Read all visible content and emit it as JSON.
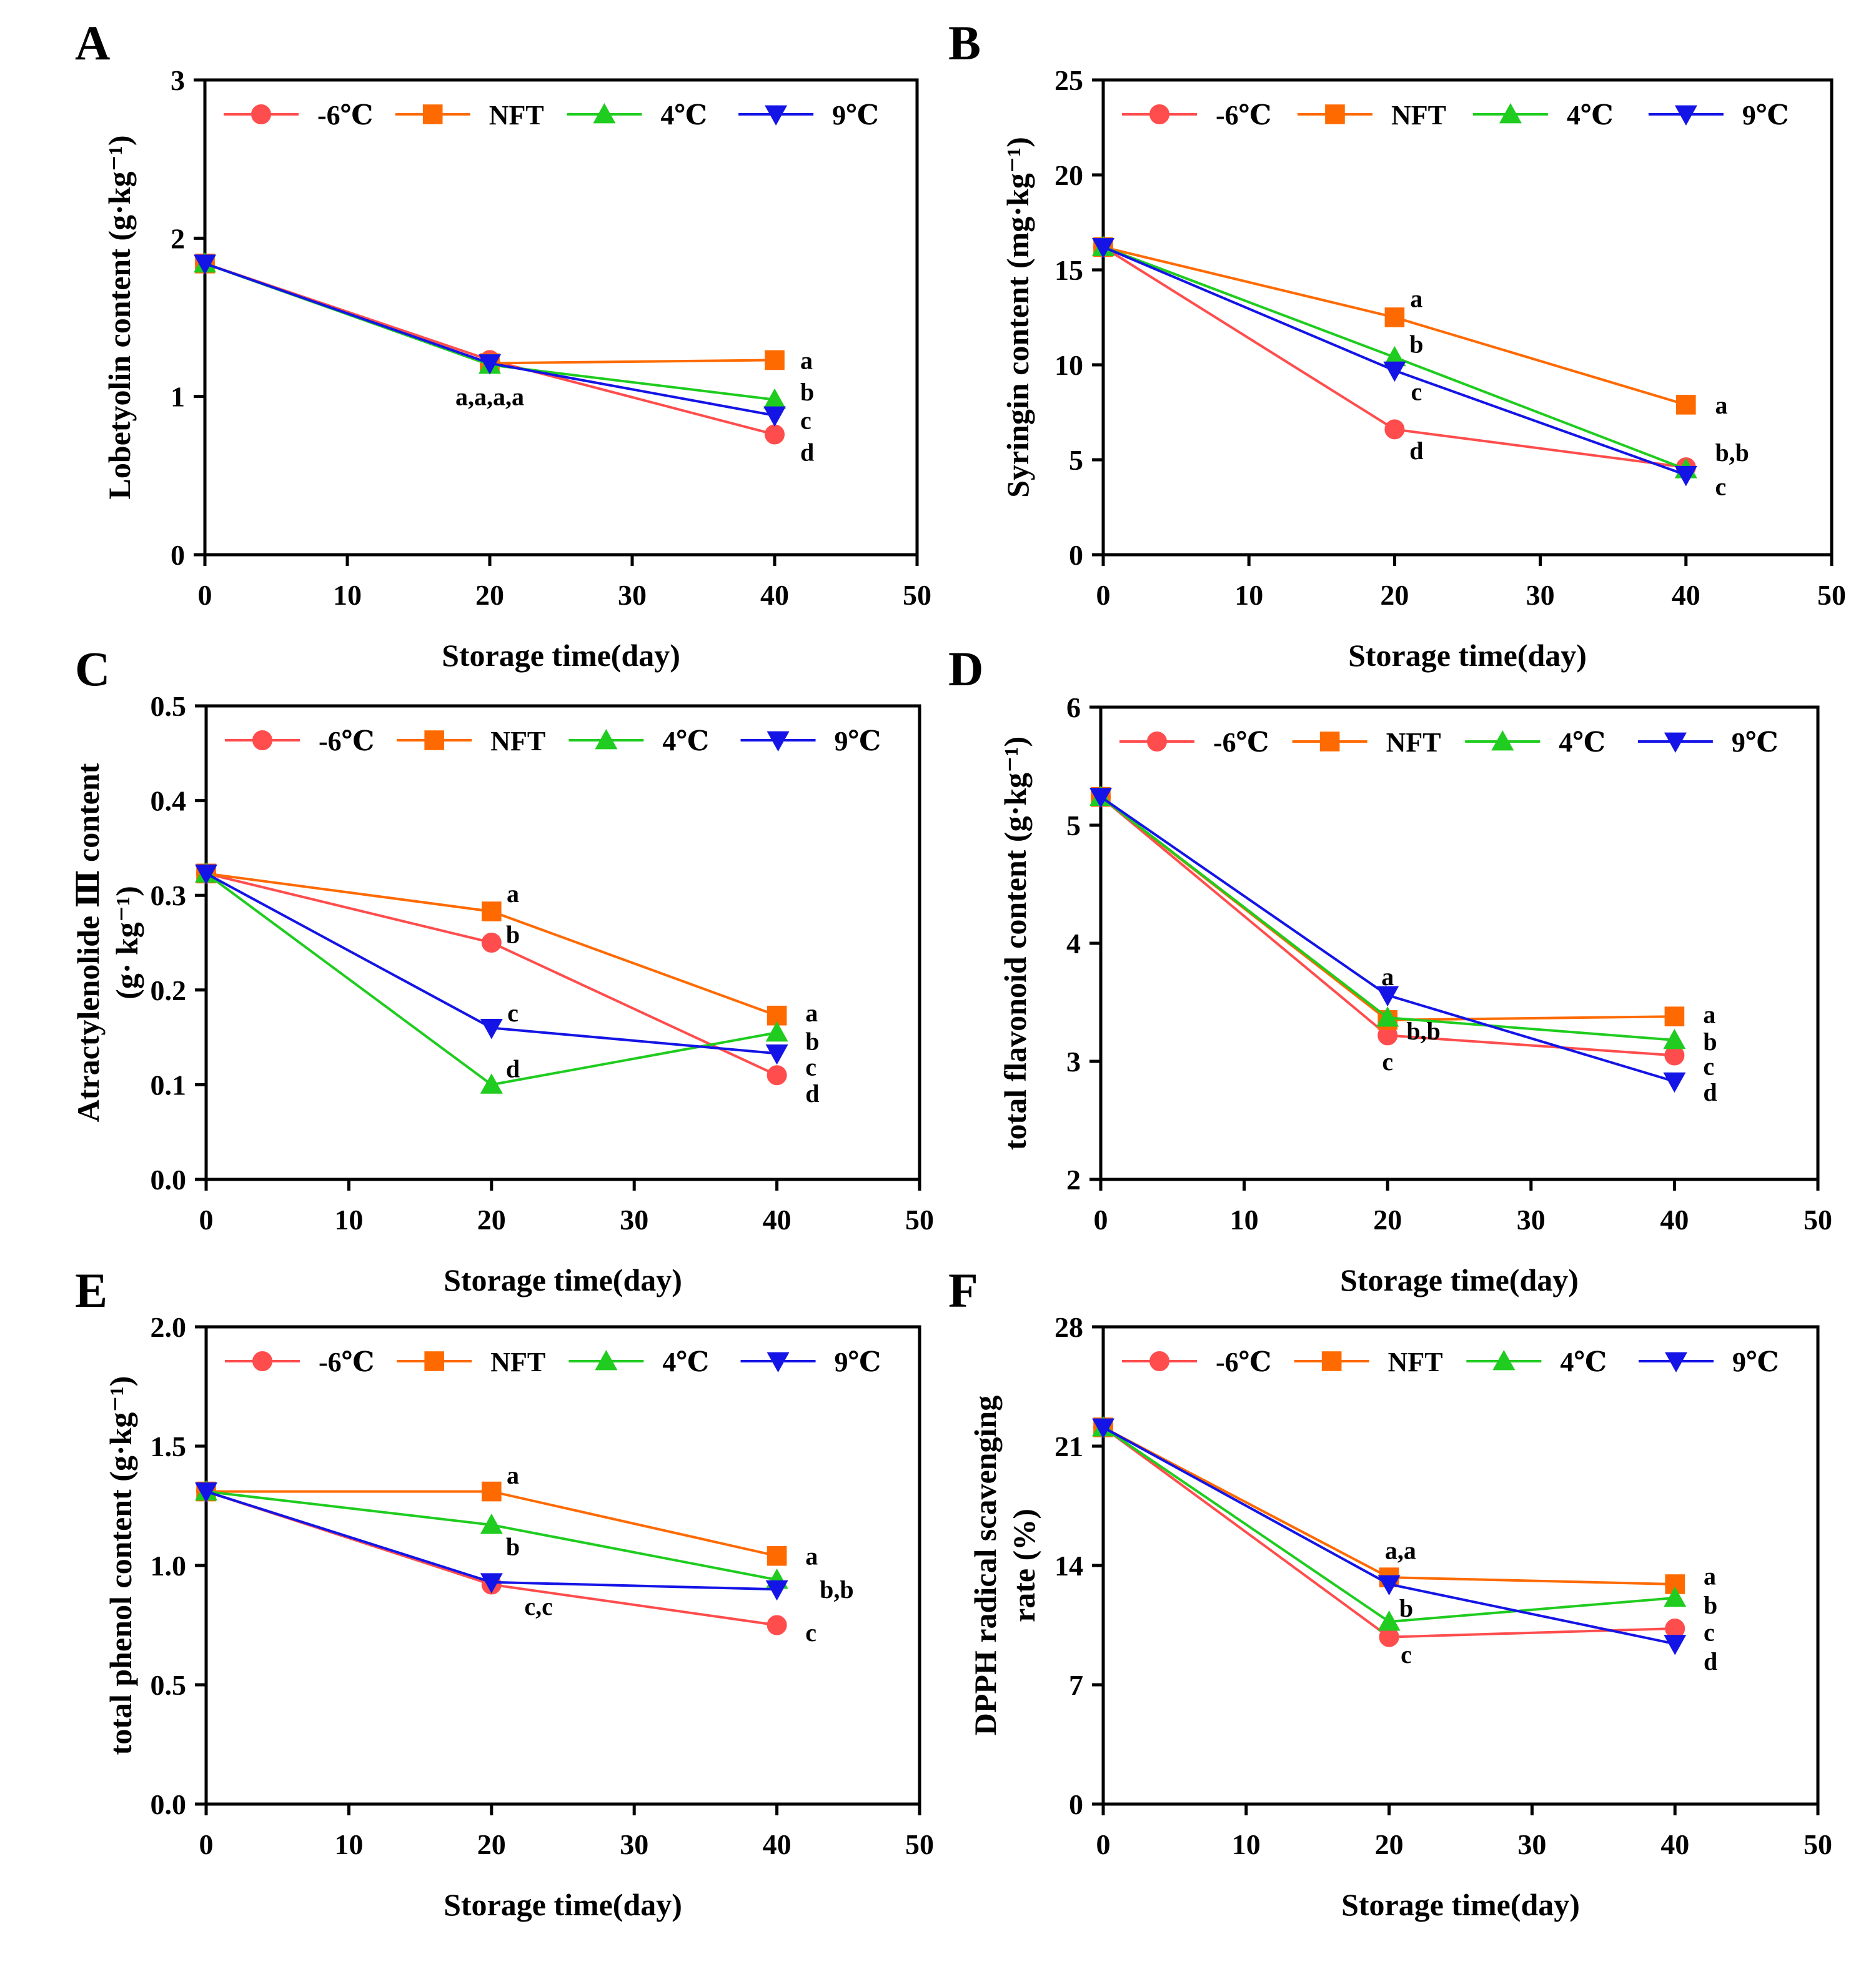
{
  "colors": {
    "neg6": "#ff4d4d",
    "nft": "#ff6a00",
    "c4": "#1fcc1f",
    "c9": "#1414e6"
  },
  "legend": [
    {
      "key": "neg6",
      "label": "-6℃",
      "marker": "circle"
    },
    {
      "key": "nft",
      "label": "NFT",
      "marker": "square"
    },
    {
      "key": "c4",
      "label": "4℃",
      "marker": "triangle-up"
    },
    {
      "key": "c9",
      "label": "9℃",
      "marker": "triangle-down"
    }
  ],
  "chart_data": [
    {
      "type": "line",
      "panel": "A",
      "xlabel": "Storage time(day)",
      "ylabel": "Lobetyolin content (g·kg⁻¹)",
      "ylabel_lines": [
        "Lobetyolin content (g·kg⁻¹)"
      ],
      "xlim": [
        0,
        50
      ],
      "xticks": [
        0,
        10,
        20,
        30,
        40,
        50
      ],
      "ylim": [
        0,
        3
      ],
      "yticks": [
        0,
        1,
        2,
        3
      ],
      "x": [
        0,
        20,
        40
      ],
      "series": [
        {
          "name": "-6℃",
          "key": "neg6",
          "values": [
            1.84,
            1.23,
            0.76
          ]
        },
        {
          "name": "NFT",
          "key": "nft",
          "values": [
            1.84,
            1.21,
            1.23
          ]
        },
        {
          "name": "4℃",
          "key": "c4",
          "values": [
            1.84,
            1.2,
            0.98
          ]
        },
        {
          "name": "9℃",
          "key": "c9",
          "values": [
            1.84,
            1.21,
            0.88
          ]
        }
      ],
      "annotations": [
        {
          "text": "a,a,a,a",
          "x": 20,
          "y": 1.0
        },
        {
          "text": "a",
          "x": 41.8,
          "y": 1.23
        },
        {
          "text": "b",
          "x": 41.8,
          "y": 1.03
        },
        {
          "text": "c",
          "x": 41.8,
          "y": 0.85
        },
        {
          "text": "d",
          "x": 41.8,
          "y": 0.65
        }
      ]
    },
    {
      "type": "line",
      "panel": "B",
      "xlabel": "Storage time(day)",
      "ylabel": "Syringin content (mg·kg⁻¹)",
      "ylabel_lines": [
        "Syringin content (mg·kg⁻¹)"
      ],
      "xlim": [
        0,
        50
      ],
      "xticks": [
        0,
        10,
        20,
        30,
        40,
        50
      ],
      "ylim": [
        0,
        25
      ],
      "yticks": [
        0,
        5,
        10,
        15,
        20,
        25
      ],
      "x": [
        0,
        20,
        40
      ],
      "series": [
        {
          "name": "-6℃",
          "key": "neg6",
          "values": [
            16.2,
            6.6,
            4.6
          ]
        },
        {
          "name": "NFT",
          "key": "nft",
          "values": [
            16.2,
            12.5,
            7.9
          ]
        },
        {
          "name": "4℃",
          "key": "c4",
          "values": [
            16.2,
            10.4,
            4.5
          ]
        },
        {
          "name": "9℃",
          "key": "c9",
          "values": [
            16.2,
            9.7,
            4.2
          ]
        }
      ],
      "annotations": [
        {
          "text": "a",
          "x": 21.5,
          "y": 13.5
        },
        {
          "text": "b",
          "x": 21.5,
          "y": 11.1
        },
        {
          "text": "c",
          "x": 21.5,
          "y": 8.6
        },
        {
          "text": "d",
          "x": 21.5,
          "y": 5.5
        },
        {
          "text": "a",
          "x": 42.0,
          "y": 7.9
        },
        {
          "text": "b,b",
          "x": 42.0,
          "y": 5.4
        },
        {
          "text": "c",
          "x": 42.0,
          "y": 3.6
        }
      ]
    },
    {
      "type": "line",
      "panel": "C",
      "xlabel": "Storage time(day)",
      "ylabel": "Atractylenolide Ⅲ content (g· kg⁻¹)",
      "ylabel_lines": [
        "Atractylenolide Ⅲ content",
        "(g· kg⁻¹)"
      ],
      "xlim": [
        0,
        50
      ],
      "xticks": [
        0,
        10,
        20,
        30,
        40,
        50
      ],
      "ylim": [
        0,
        0.5
      ],
      "yticks": [
        0.0,
        0.1,
        0.2,
        0.3,
        0.4,
        0.5
      ],
      "ytick_decimals": 1,
      "x": [
        0,
        20,
        40
      ],
      "series": [
        {
          "name": "-6℃",
          "key": "neg6",
          "values": [
            0.323,
            0.25,
            0.11
          ]
        },
        {
          "name": "NFT",
          "key": "nft",
          "values": [
            0.323,
            0.283,
            0.173
          ]
        },
        {
          "name": "4℃",
          "key": "c4",
          "values": [
            0.323,
            0.1,
            0.155
          ]
        },
        {
          "name": "9℃",
          "key": "c9",
          "values": [
            0.323,
            0.16,
            0.133
          ]
        }
      ],
      "annotations": [
        {
          "text": "a",
          "x": 21.5,
          "y": 0.302
        },
        {
          "text": "b",
          "x": 21.5,
          "y": 0.259
        },
        {
          "text": "c",
          "x": 21.5,
          "y": 0.176
        },
        {
          "text": "d",
          "x": 21.5,
          "y": 0.117
        },
        {
          "text": "a",
          "x": 42.0,
          "y": 0.176
        },
        {
          "text": "b",
          "x": 42.0,
          "y": 0.146
        },
        {
          "text": "c",
          "x": 42.0,
          "y": 0.119
        },
        {
          "text": "d",
          "x": 42.0,
          "y": 0.091
        }
      ]
    },
    {
      "type": "line",
      "panel": "D",
      "xlabel": "Storage time(day)",
      "ylabel": "total flavonoid content (g·kg⁻¹)",
      "ylabel_lines": [
        "total flavonoid content (g·kg⁻¹)"
      ],
      "xlim": [
        0,
        50
      ],
      "xticks": [
        0,
        10,
        20,
        30,
        40,
        50
      ],
      "ylim": [
        2,
        6
      ],
      "yticks": [
        2,
        3,
        4,
        5,
        6
      ],
      "x": [
        0,
        20,
        40
      ],
      "series": [
        {
          "name": "-6℃",
          "key": "neg6",
          "values": [
            5.24,
            3.22,
            3.05
          ]
        },
        {
          "name": "NFT",
          "key": "nft",
          "values": [
            5.24,
            3.35,
            3.38
          ]
        },
        {
          "name": "4℃",
          "key": "c4",
          "values": [
            5.24,
            3.37,
            3.18
          ]
        },
        {
          "name": "9℃",
          "key": "c9",
          "values": [
            5.24,
            3.56,
            2.83
          ]
        }
      ],
      "annotations": [
        {
          "text": "a",
          "x": 20,
          "y": 3.72
        },
        {
          "text": "b,b",
          "x": 22.5,
          "y": 3.26
        },
        {
          "text": "c",
          "x": 20,
          "y": 3.0
        },
        {
          "text": "a",
          "x": 42.0,
          "y": 3.4
        },
        {
          "text": "b",
          "x": 42.0,
          "y": 3.17
        },
        {
          "text": "c",
          "x": 42.0,
          "y": 2.96
        },
        {
          "text": "d",
          "x": 42.0,
          "y": 2.74
        }
      ]
    },
    {
      "type": "line",
      "panel": "E",
      "xlabel": "Storage time(day)",
      "ylabel": "total phenol content (g·kg⁻¹)",
      "ylabel_lines": [
        "total phenol content (g·kg⁻¹)"
      ],
      "xlim": [
        0,
        50
      ],
      "xticks": [
        0,
        10,
        20,
        30,
        40,
        50
      ],
      "ylim": [
        0,
        2
      ],
      "yticks": [
        0.0,
        0.5,
        1.0,
        1.5,
        2.0
      ],
      "ytick_decimals": 1,
      "x": [
        0,
        20,
        40
      ],
      "series": [
        {
          "name": "-6℃",
          "key": "neg6",
          "values": [
            1.31,
            0.92,
            0.75
          ]
        },
        {
          "name": "NFT",
          "key": "nft",
          "values": [
            1.31,
            1.31,
            1.04
          ]
        },
        {
          "name": "4℃",
          "key": "c4",
          "values": [
            1.31,
            1.17,
            0.94
          ]
        },
        {
          "name": "9℃",
          "key": "c9",
          "values": [
            1.31,
            0.93,
            0.9
          ]
        }
      ],
      "annotations": [
        {
          "text": "a",
          "x": 21.5,
          "y": 1.38
        },
        {
          "text": "b",
          "x": 21.5,
          "y": 1.08
        },
        {
          "text": "c,c",
          "x": 23.3,
          "y": 0.83
        },
        {
          "text": "a",
          "x": 42.0,
          "y": 1.04
        },
        {
          "text": "b,b",
          "x": 43.0,
          "y": 0.9
        },
        {
          "text": "c",
          "x": 42.0,
          "y": 0.72
        }
      ]
    },
    {
      "type": "line",
      "panel": "F",
      "xlabel": "Storage time(day)",
      "ylabel": "DPPH radical scavenging rate (%)",
      "ylabel_lines": [
        "DPPH radical scavenging",
        "rate (%)"
      ],
      "xlim": [
        0,
        50
      ],
      "xticks": [
        0,
        10,
        20,
        30,
        40,
        50
      ],
      "ylim": [
        0,
        28
      ],
      "yticks": [
        0,
        7,
        14,
        21,
        28
      ],
      "x": [
        0,
        20,
        40
      ],
      "series": [
        {
          "name": "-6℃",
          "key": "neg6",
          "values": [
            22.1,
            9.8,
            10.3
          ]
        },
        {
          "name": "NFT",
          "key": "nft",
          "values": [
            22.1,
            13.3,
            12.9
          ]
        },
        {
          "name": "4℃",
          "key": "c4",
          "values": [
            22.1,
            10.7,
            12.1
          ]
        },
        {
          "name": "9℃",
          "key": "c9",
          "values": [
            22.1,
            12.9,
            9.4
          ]
        }
      ],
      "annotations": [
        {
          "text": "a,a",
          "x": 20.8,
          "y": 14.9
        },
        {
          "text": "b",
          "x": 21.2,
          "y": 11.5
        },
        {
          "text": "c",
          "x": 21.2,
          "y": 8.8
        },
        {
          "text": "a",
          "x": 42.0,
          "y": 13.4
        },
        {
          "text": "b",
          "x": 42.0,
          "y": 11.7
        },
        {
          "text": "c",
          "x": 42.0,
          "y": 10.1
        },
        {
          "text": "d",
          "x": 42.0,
          "y": 8.4
        }
      ]
    }
  ]
}
